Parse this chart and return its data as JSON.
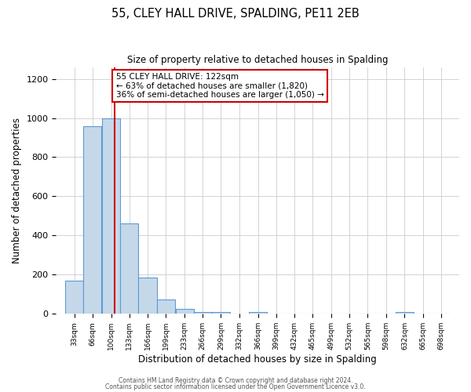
{
  "title": "55, CLEY HALL DRIVE, SPALDING, PE11 2EB",
  "subtitle": "Size of property relative to detached houses in Spalding",
  "xlabel": "Distribution of detached houses by size in Spalding",
  "ylabel": "Number of detached properties",
  "bar_labels": [
    "33sqm",
    "66sqm",
    "100sqm",
    "133sqm",
    "166sqm",
    "199sqm",
    "233sqm",
    "266sqm",
    "299sqm",
    "332sqm",
    "366sqm",
    "399sqm",
    "432sqm",
    "465sqm",
    "499sqm",
    "532sqm",
    "565sqm",
    "598sqm",
    "632sqm",
    "665sqm",
    "698sqm"
  ],
  "bar_values": [
    170,
    960,
    1000,
    460,
    185,
    75,
    25,
    10,
    10,
    0,
    10,
    0,
    0,
    0,
    0,
    0,
    0,
    0,
    10,
    0,
    0
  ],
  "bar_color": "#c5d8ea",
  "bar_edge_color": "#5b9bd5",
  "bin_width": 33,
  "bin_starts": [
    33,
    66,
    100,
    133,
    166,
    199,
    233,
    266,
    299,
    332,
    366,
    399,
    432,
    465,
    499,
    532,
    565,
    598,
    632,
    665,
    698
  ],
  "property_size": 122,
  "vline_color": "#cc0000",
  "annotation_text": "55 CLEY HALL DRIVE: 122sqm\n← 63% of detached houses are smaller (1,820)\n36% of semi-detached houses are larger (1,050) →",
  "annotation_box_color": "#ffffff",
  "annotation_box_edge_color": "#cc0000",
  "ylim": [
    0,
    1260
  ],
  "yticks": [
    0,
    200,
    400,
    600,
    800,
    1000,
    1200
  ],
  "footer_line1": "Contains HM Land Registry data © Crown copyright and database right 2024.",
  "footer_line2": "Contains public sector information licensed under the Open Government Licence v3.0.",
  "background_color": "#ffffff",
  "grid_color": "#cccccc"
}
